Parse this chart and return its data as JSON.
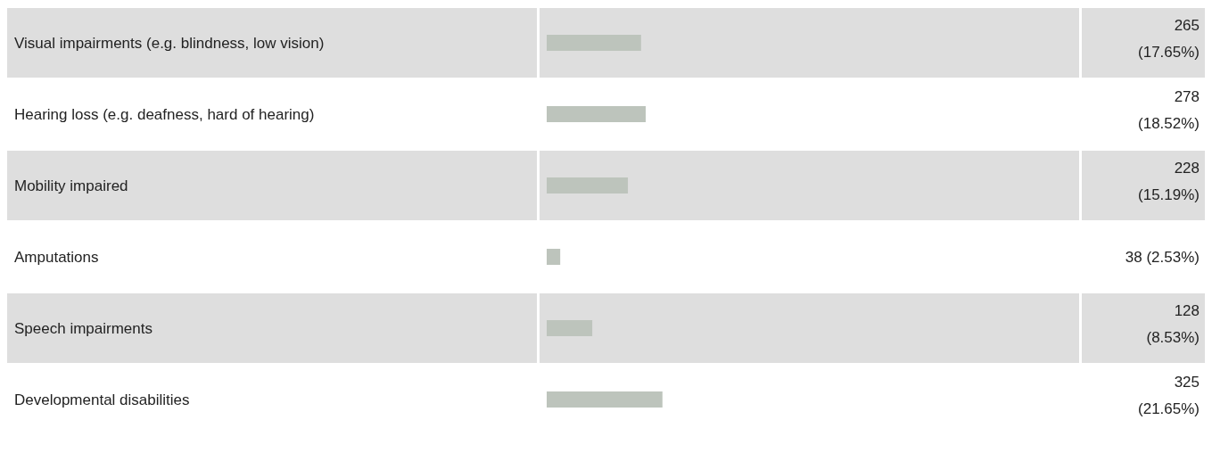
{
  "chart_data": {
    "type": "bar",
    "orientation": "horizontal",
    "categories": [
      "Visual impairments (e.g. blindness, low vision)",
      "Hearing loss (e.g. deafness, hard of hearing)",
      "Mobility impaired",
      "Amputations",
      "Speech impairments",
      "Developmental disabilities"
    ],
    "values": [
      265,
      278,
      228,
      38,
      128,
      325
    ],
    "value_labels": [
      "265 (17.65%)",
      "278 (18.52%)",
      "228 (15.19%)",
      "38 (2.53%)",
      "128 (8.53%)",
      "325 (21.65%)"
    ],
    "color": "#bdc4bc"
  }
}
